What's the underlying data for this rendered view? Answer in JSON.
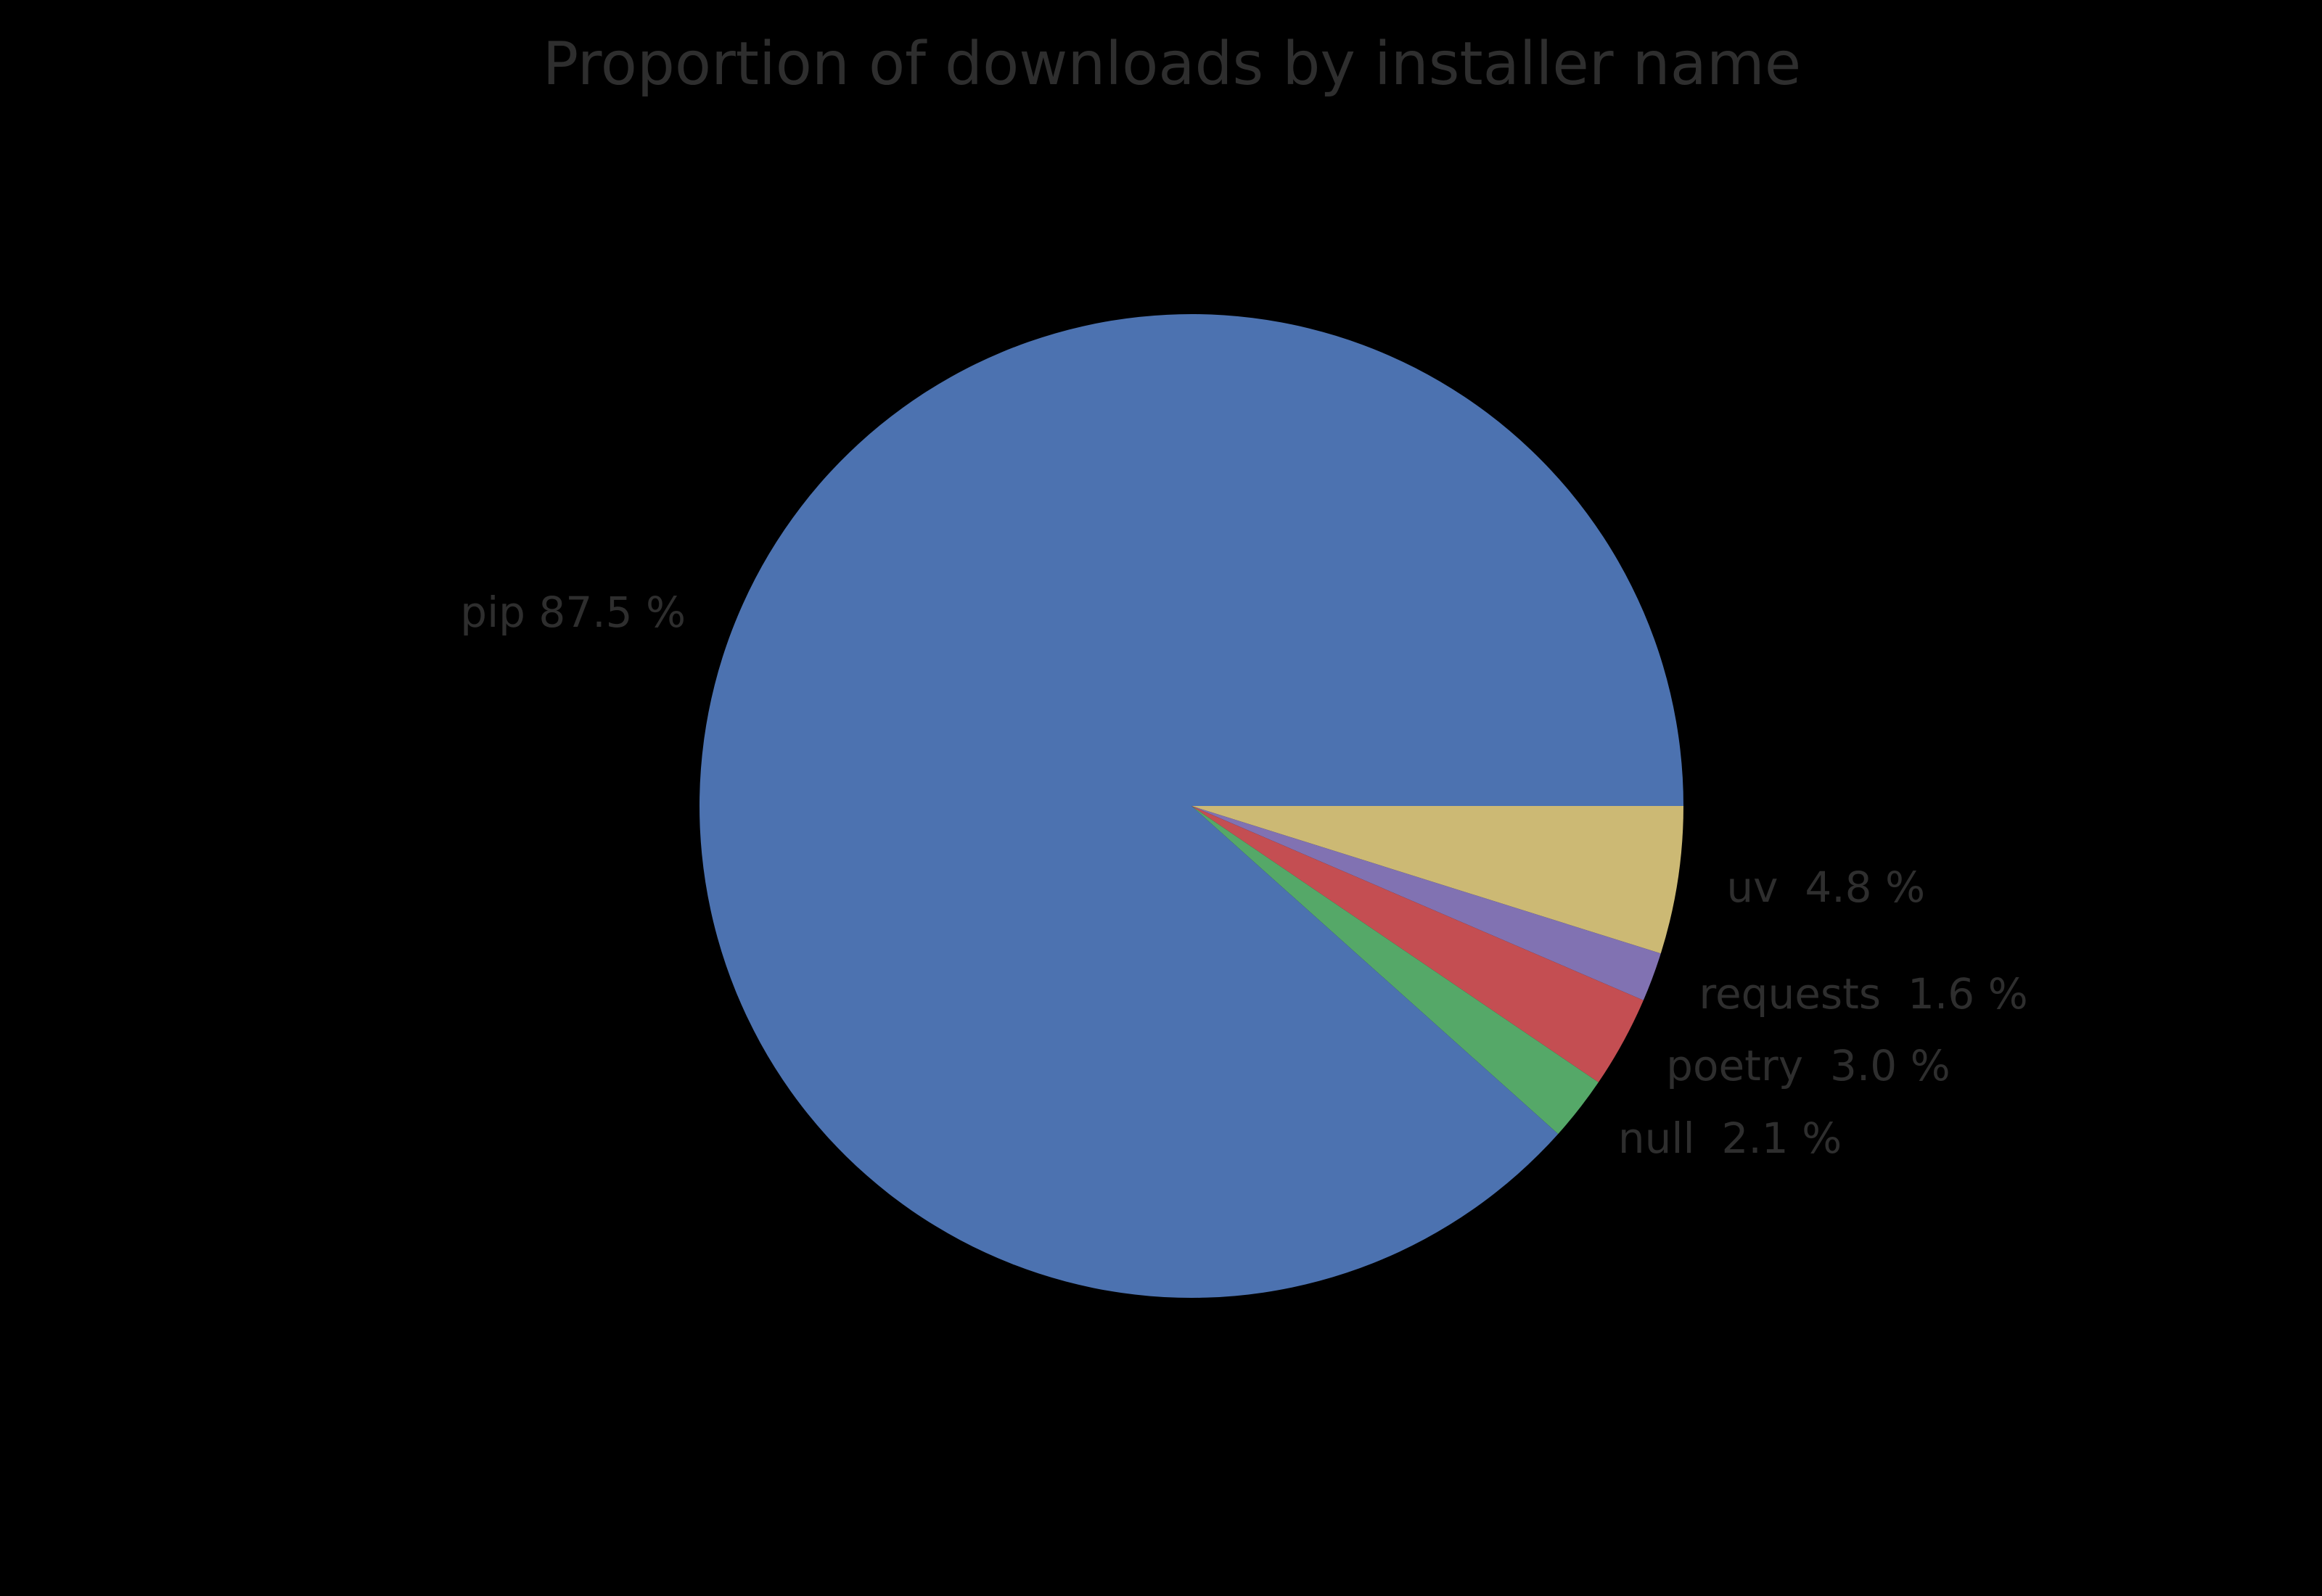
{
  "figure": {
    "background_color": "#000000",
    "text_color": "#2e2e2e"
  },
  "chart_data": {
    "type": "pie",
    "title": "Proportion of downloads by installer name",
    "unit": "%",
    "start_angle_deg": 0,
    "direction": "clockwise",
    "legend": "none (labels placed beside wedges)",
    "slices": [
      {
        "label": "uv",
        "value": 4.8,
        "display": "uv  4.8 %",
        "color": "#CCB974"
      },
      {
        "label": "requests",
        "value": 1.6,
        "display": "requests  1.6 %",
        "color": "#8172B2"
      },
      {
        "label": "poetry",
        "value": 3.0,
        "display": "poetry  3.0 %",
        "color": "#C44E52"
      },
      {
        "label": "null",
        "value": 2.1,
        "display": "null  2.1 %",
        "color": "#55A868"
      },
      {
        "label": "pip",
        "value": 87.5,
        "display": "pip 87.5 %",
        "color": "#4C72B0"
      }
    ]
  }
}
